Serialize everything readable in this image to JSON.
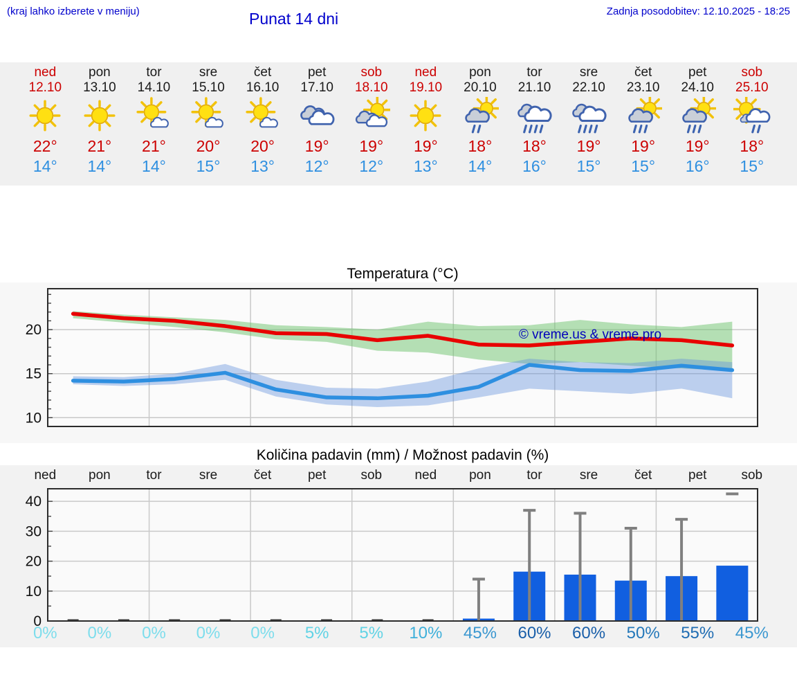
{
  "header": {
    "note": "(kraj lahko izberete v meniju)",
    "title": "Punat 14 dni",
    "updated": "Zadnja posodobitev: 12.10.2025 - 18:25"
  },
  "colors": {
    "header_text": "#0000cc",
    "holiday_red": "#cc0000",
    "temp_high_text": "#cc0000",
    "temp_low_text": "#2e8fe0",
    "strip_background": "#f0f0f0",
    "max_line": "#e80000",
    "min_line": "#2e8fe0",
    "max_band": "rgba(110,195,110,0.5)",
    "min_band": "rgba(100,145,220,0.42)",
    "bar_fill": "#115fe0",
    "zero_dash": "#3a3a3a",
    "whisker": "#808080",
    "gridline": "#c9c9c9",
    "watermark_text": "#0000bb"
  },
  "forecast": {
    "days": [
      {
        "name": "ned",
        "date": "12.10",
        "holiday": true,
        "icon": "sunny",
        "temp_max": "22°",
        "temp_min": "14°"
      },
      {
        "name": "pon",
        "date": "13.10",
        "holiday": false,
        "icon": "sunny",
        "temp_max": "21°",
        "temp_min": "14°"
      },
      {
        "name": "tor",
        "date": "14.10",
        "holiday": false,
        "icon": "partly-cloudy",
        "temp_max": "21°",
        "temp_min": "14°"
      },
      {
        "name": "sre",
        "date": "15.10",
        "holiday": false,
        "icon": "partly-cloudy",
        "temp_max": "20°",
        "temp_min": "15°"
      },
      {
        "name": "čet",
        "date": "16.10",
        "holiday": false,
        "icon": "partly-cloudy",
        "temp_max": "20°",
        "temp_min": "13°"
      },
      {
        "name": "pet",
        "date": "17.10",
        "holiday": false,
        "icon": "cloudy",
        "temp_max": "19°",
        "temp_min": "12°"
      },
      {
        "name": "sob",
        "date": "18.10",
        "holiday": true,
        "icon": "mostly-cloudy",
        "temp_max": "19°",
        "temp_min": "12°"
      },
      {
        "name": "ned",
        "date": "19.10",
        "holiday": true,
        "icon": "sunny",
        "temp_max": "19°",
        "temp_min": "13°"
      },
      {
        "name": "pon",
        "date": "20.10",
        "holiday": false,
        "icon": "sun-showers-2",
        "temp_max": "18°",
        "temp_min": "14°"
      },
      {
        "name": "tor",
        "date": "21.10",
        "holiday": false,
        "icon": "rain",
        "temp_max": "18°",
        "temp_min": "16°"
      },
      {
        "name": "sre",
        "date": "22.10",
        "holiday": false,
        "icon": "rain",
        "temp_max": "19°",
        "temp_min": "15°"
      },
      {
        "name": "čet",
        "date": "23.10",
        "holiday": false,
        "icon": "sun-showers-3",
        "temp_max": "19°",
        "temp_min": "15°"
      },
      {
        "name": "pet",
        "date": "24.10",
        "holiday": false,
        "icon": "sun-showers-3",
        "temp_max": "19°",
        "temp_min": "16°"
      },
      {
        "name": "sob",
        "date": "25.10",
        "holiday": true,
        "icon": "light-showers",
        "temp_max": "18°",
        "temp_min": "15°"
      }
    ]
  },
  "chart_data": [
    {
      "type": "line",
      "title": "Temperatura (°C)",
      "watermark": "© vreme.us & vreme.pro",
      "ylim": [
        9.0,
        24.65
      ],
      "yticks": [
        10,
        15,
        20
      ],
      "grid": true,
      "legend_position": "none",
      "x_days": [
        "12.10",
        "13.10",
        "14.10",
        "15.10",
        "16.10",
        "17.10",
        "18.10",
        "19.10",
        "20.10",
        "21.10",
        "22.10",
        "23.10",
        "24.10",
        "25.10"
      ],
      "series": [
        {
          "name": "max-temp",
          "values": [
            21.8,
            21.3,
            21.0,
            20.4,
            19.6,
            19.5,
            18.8,
            19.3,
            18.3,
            18.2,
            18.6,
            19.0,
            18.8,
            18.2
          ]
        },
        {
          "name": "min-temp",
          "values": [
            14.2,
            14.1,
            14.4,
            15.1,
            13.2,
            12.3,
            12.2,
            12.5,
            13.5,
            16.0,
            15.4,
            15.3,
            15.9,
            15.4
          ]
        }
      ],
      "bands": [
        {
          "name": "max-temp-range",
          "upper": [
            22.1,
            21.7,
            21.4,
            21.1,
            20.5,
            20.3,
            20.0,
            20.9,
            20.4,
            20.5,
            21.1,
            20.6,
            20.3,
            20.9
          ],
          "lower": [
            21.3,
            20.8,
            20.3,
            19.7,
            18.9,
            18.6,
            17.6,
            17.4,
            16.6,
            16.1,
            16.3,
            15.9,
            15.6,
            15.3
          ]
        },
        {
          "name": "min-temp-range",
          "upper": [
            14.7,
            14.6,
            15.0,
            16.1,
            14.3,
            13.4,
            13.3,
            14.1,
            15.6,
            16.7,
            16.3,
            16.2,
            16.7,
            16.3
          ],
          "lower": [
            13.8,
            13.6,
            13.8,
            14.3,
            12.4,
            11.5,
            11.2,
            11.4,
            12.3,
            13.3,
            13.0,
            12.7,
            13.3,
            12.2
          ]
        }
      ]
    },
    {
      "type": "bar",
      "title": "Količina padavin (mm) / Možnost padavin (%)",
      "ylim": [
        0,
        44.2
      ],
      "yticks": [
        0,
        10,
        20,
        30,
        40
      ],
      "grid": true,
      "day_labels": [
        "ned",
        "pon",
        "tor",
        "sre",
        "čet",
        "pet",
        "sob",
        "ned",
        "pon",
        "tor",
        "sre",
        "čet",
        "pet",
        "sob"
      ],
      "values_mm": [
        0,
        0,
        0,
        0,
        0,
        0.1,
        0.1,
        0.1,
        0.8,
        16.5,
        15.5,
        13.5,
        15.0,
        18.5
      ],
      "whisker_max": [
        0,
        0,
        0,
        0,
        0,
        0,
        0,
        0,
        14,
        37,
        36,
        31,
        34,
        42.5
      ],
      "whisker_cap_only": [
        false,
        false,
        false,
        false,
        false,
        false,
        false,
        false,
        false,
        false,
        false,
        false,
        false,
        true
      ],
      "probabilities": [
        {
          "label": "0%",
          "color": "#7dddec"
        },
        {
          "label": "0%",
          "color": "#7dddec"
        },
        {
          "label": "0%",
          "color": "#7dddec"
        },
        {
          "label": "0%",
          "color": "#7dddec"
        },
        {
          "label": "0%",
          "color": "#7dddec"
        },
        {
          "label": "5%",
          "color": "#61d3e5"
        },
        {
          "label": "5%",
          "color": "#61d3e5"
        },
        {
          "label": "10%",
          "color": "#3fb0da"
        },
        {
          "label": "45%",
          "color": "#3a97d0"
        },
        {
          "label": "60%",
          "color": "#1a5fa9"
        },
        {
          "label": "60%",
          "color": "#1a5fa9"
        },
        {
          "label": "50%",
          "color": "#2478ba"
        },
        {
          "label": "55%",
          "color": "#1f6cb2"
        },
        {
          "label": "45%",
          "color": "#3a97d0"
        }
      ]
    }
  ]
}
